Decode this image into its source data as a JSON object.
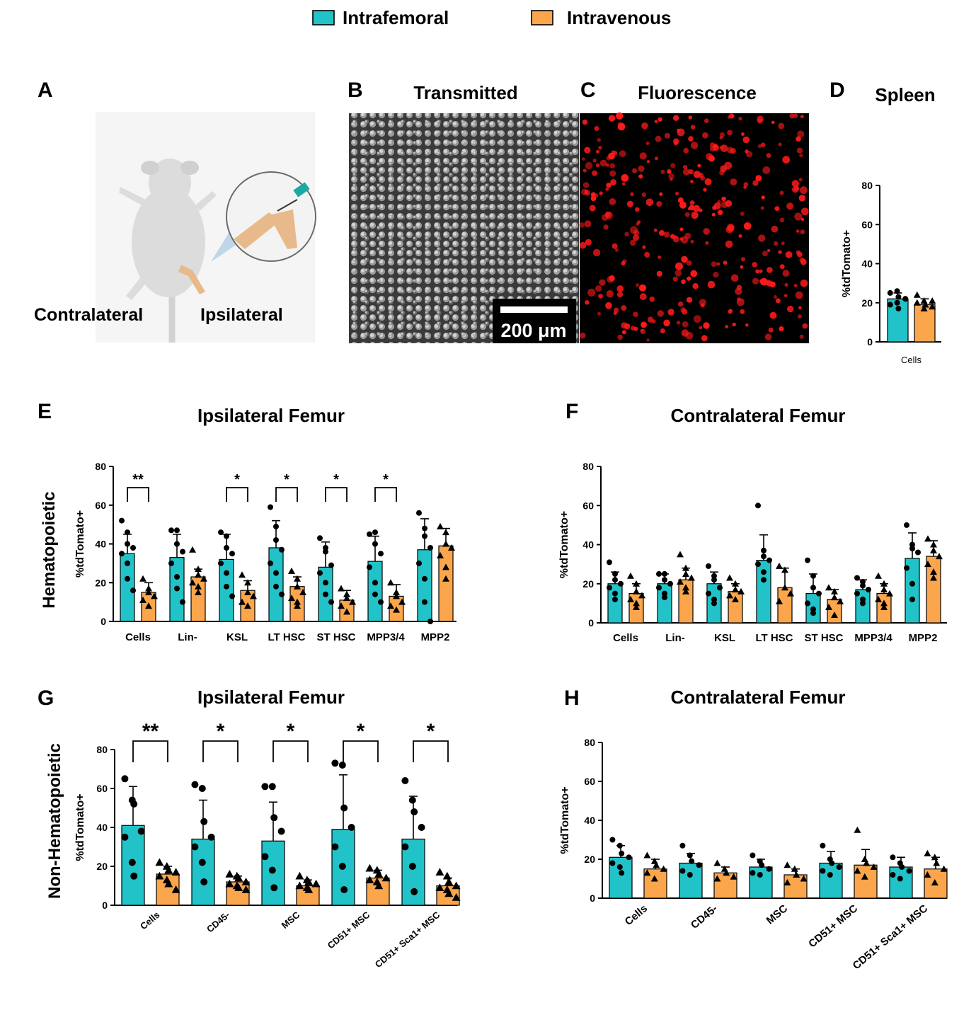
{
  "legend": {
    "entries": [
      {
        "label": "Intrafemoral",
        "color": "#22C3C8"
      },
      {
        "label": "Intravenous",
        "color": "#FBA64C"
      }
    ]
  },
  "colors": {
    "intrafemoral": "#22C3C8",
    "intravenous": "#FBA64C",
    "axis": "#000000",
    "fluorescence": "#ff1a1a"
  },
  "panels": {
    "A": {
      "letter": "A",
      "left_label": "Contralateral",
      "right_label": "Ipsilateral",
      "icons": [
        "mouse-illustration",
        "syringe-injection-illustration"
      ]
    },
    "B": {
      "letter": "B",
      "title": "Transmitted",
      "scale_bar": "200 μm"
    },
    "C": {
      "letter": "C",
      "title": "Fluorescence"
    },
    "D": {
      "letter": "D",
      "title": "Spleen"
    },
    "E": {
      "letter": "E",
      "title": "Ipsilateral Femur"
    },
    "F": {
      "letter": "F",
      "title": "Contralateral Femur"
    },
    "G": {
      "letter": "G",
      "title": "Ipsilateral Femur"
    },
    "H": {
      "letter": "H",
      "title": "Contralateral Femur"
    }
  },
  "row_labels": {
    "hematopoietic": "Hematopoietic",
    "non_hematopoietic": "Non-Hematopoietic"
  },
  "chart_data": [
    {
      "id": "D",
      "type": "bar",
      "title": "Spleen",
      "ylabel": "%tdTomato+",
      "ylim": [
        0,
        80
      ],
      "yticks": [
        0,
        20,
        40,
        60,
        80
      ],
      "categories": [
        "Cells"
      ],
      "series": [
        {
          "name": "Intrafemoral",
          "values": [
            22
          ],
          "err": [
            3
          ],
          "points": [
            [
              25,
              26,
              23,
              22,
              19,
              20,
              17,
              22
            ]
          ]
        },
        {
          "name": "Intravenous",
          "values": [
            19
          ],
          "err": [
            3
          ],
          "points": [
            [
              24,
              21,
              19,
              18,
              20,
              17,
              19,
              21
            ]
          ]
        }
      ]
    },
    {
      "id": "E",
      "type": "bar",
      "title": "Ipsilateral Femur",
      "ylabel": "%tdTomato+",
      "ylim": [
        0,
        80
      ],
      "yticks": [
        0,
        20,
        40,
        60,
        80
      ],
      "categories": [
        "Cells",
        "Lin-",
        "KSL",
        "LT HSC",
        "ST HSC",
        "MPP3/4",
        "MPP2"
      ],
      "series": [
        {
          "name": "Intrafemoral",
          "values": [
            35,
            33,
            32,
            38,
            28,
            31,
            37
          ],
          "err": [
            10,
            12,
            13,
            14,
            13,
            13,
            16
          ],
          "points": [
            [
              52,
              46,
              40,
              38,
              35,
              30,
              22,
              16
            ],
            [
              47,
              47,
              40,
              36,
              30,
              23,
              17,
              10
            ],
            [
              46,
              44,
              38,
              35,
              30,
              25,
              18,
              13
            ],
            [
              59,
              49,
              42,
              37,
              30,
              25,
              18,
              14
            ],
            [
              43,
              38,
              36,
              29,
              25,
              20,
              14,
              10
            ],
            [
              45,
              46,
              40,
              35,
              28,
              20,
              14,
              10
            ],
            [
              56,
              48,
              44,
              38,
              30,
              22,
              10,
              0
            ]
          ]
        },
        {
          "name": "Intravenous",
          "values": [
            15,
            23,
            16,
            18,
            11,
            13,
            39
          ],
          "err": [
            5,
            4,
            5,
            5,
            5,
            6,
            9
          ],
          "points": [
            [
              22,
              17,
              15,
              13,
              11,
              8
            ],
            [
              37,
              27,
              24,
              22,
              20,
              18,
              15
            ],
            [
              24,
              20,
              15,
              13,
              10,
              8
            ],
            [
              26,
              22,
              18,
              15,
              12,
              10,
              8
            ],
            [
              17,
              14,
              12,
              10,
              8,
              5
            ],
            [
              20,
              15,
              13,
              10,
              8,
              6
            ],
            [
              49,
              46,
              40,
              38,
              34,
              28,
              22
            ]
          ]
        }
      ],
      "significance": [
        {
          "category": "Cells",
          "label": "**"
        },
        {
          "category": "KSL",
          "label": "*"
        },
        {
          "category": "LT HSC",
          "label": "*"
        },
        {
          "category": "ST HSC",
          "label": "*"
        },
        {
          "category": "MPP3/4",
          "label": "*"
        }
      ]
    },
    {
      "id": "F",
      "type": "bar",
      "title": "Contralateral Femur",
      "ylabel": "%tdTomato+",
      "ylim": [
        0,
        80
      ],
      "yticks": [
        0,
        20,
        40,
        60,
        80
      ],
      "categories": [
        "Cells",
        "Lin-",
        "KSL",
        "LT HSC",
        "ST HSC",
        "MPP3/4",
        "MPP2"
      ],
      "series": [
        {
          "name": "Intrafemoral",
          "values": [
            20,
            20,
            20,
            32,
            15,
            17,
            33
          ],
          "err": [
            6,
            5,
            6,
            13,
            10,
            5,
            13
          ],
          "points": [
            [
              31,
              25,
              22,
              20,
              18,
              15,
              12
            ],
            [
              25,
              25,
              22,
              20,
              18,
              15,
              13
            ],
            [
              29,
              24,
              22,
              18,
              15,
              12,
              10
            ],
            [
              60,
              37,
              34,
              32,
              30,
              26,
              22
            ],
            [
              32,
              24,
              18,
              15,
              10,
              7,
              5
            ],
            [
              23,
              21,
              19,
              17,
              15,
              12,
              10
            ],
            [
              50,
              40,
              38,
              36,
              28,
              20,
              12
            ]
          ]
        },
        {
          "name": "Intravenous",
          "values": [
            15,
            22,
            16,
            18,
            12,
            15,
            34
          ],
          "err": [
            5,
            6,
            4,
            10,
            5,
            5,
            8
          ],
          "points": [
            [
              24,
              20,
              16,
              14,
              12,
              10,
              8
            ],
            [
              35,
              28,
              25,
              23,
              21,
              18,
              16
            ],
            [
              23,
              20,
              17,
              16,
              14,
              12
            ],
            [
              29,
              27,
              18,
              15,
              11
            ],
            [
              18,
              16,
              13,
              11,
              8,
              4
            ],
            [
              24,
              20,
              17,
              15,
              12,
              10,
              8
            ],
            [
              43,
              40,
              37,
              34,
              30,
              26,
              23
            ]
          ]
        }
      ]
    },
    {
      "id": "G",
      "type": "bar",
      "title": "Ipsilateral Femur",
      "ylabel": "%tdTomato+",
      "ylim": [
        0,
        80
      ],
      "yticks": [
        0,
        20,
        40,
        60,
        80
      ],
      "categories": [
        "Cells",
        "CD45-",
        "MSC",
        "CD51+ MSC",
        "CD51+ Sca1+ MSC"
      ],
      "series": [
        {
          "name": "Intrafemoral",
          "values": [
            41,
            34,
            33,
            39,
            34
          ],
          "err": [
            20,
            20,
            20,
            28,
            22
          ],
          "points": [
            [
              65,
              54,
              52,
              38,
              35,
              22,
              15
            ],
            [
              62,
              60,
              43,
              35,
              30,
              22,
              12
            ],
            [
              61,
              61,
              45,
              38,
              25,
              18,
              9
            ],
            [
              73,
              72,
              50,
              40,
              30,
              20,
              8
            ],
            [
              64,
              54,
              48,
              40,
              30,
              20,
              7
            ]
          ]
        },
        {
          "name": "Intravenous",
          "values": [
            16,
            12,
            10,
            14,
            10
          ],
          "err": [
            4,
            3,
            3,
            4,
            4
          ],
          "points": [
            [
              22,
              20,
              18,
              17,
              15,
              13,
              11,
              8
            ],
            [
              16,
              15,
              14,
              12,
              11,
              10,
              9,
              8
            ],
            [
              15,
              13,
              12,
              11,
              10,
              9,
              8
            ],
            [
              19,
              18,
              16,
              14,
              13,
              12,
              10
            ],
            [
              17,
              15,
              12,
              10,
              9,
              8,
              6,
              4
            ]
          ]
        }
      ],
      "significance": [
        {
          "category": "Cells",
          "label": "**"
        },
        {
          "category": "CD45-",
          "label": "*"
        },
        {
          "category": "MSC",
          "label": "*"
        },
        {
          "category": "CD51+ MSC",
          "label": "*"
        },
        {
          "category": "CD51+ Sca1+ MSC",
          "label": "*"
        }
      ]
    },
    {
      "id": "H",
      "type": "bar",
      "title": "Contralateral Femur",
      "ylabel": "%tdTomato+",
      "ylim": [
        0,
        80
      ],
      "yticks": [
        0,
        20,
        40,
        60,
        80
      ],
      "categories": [
        "Cells",
        "CD45-",
        "MSC",
        "CD51+ MSC",
        "CD51+ Sca1+ MSC"
      ],
      "series": [
        {
          "name": "Intrafemoral",
          "values": [
            21,
            18,
            16,
            18,
            16
          ],
          "err": [
            6,
            5,
            4,
            6,
            5
          ],
          "points": [
            [
              30,
              27,
              23,
              21,
              18,
              16,
              13
            ],
            [
              27,
              22,
              19,
              17,
              14,
              12
            ],
            [
              22,
              19,
              17,
              15,
              13,
              12
            ],
            [
              27,
              20,
              18,
              16,
              14,
              12
            ],
            [
              21,
              18,
              16,
              14,
              12,
              10
            ]
          ]
        },
        {
          "name": "Intravenous",
          "values": [
            15,
            13,
            12,
            17,
            15
          ],
          "err": [
            5,
            3,
            3,
            8,
            6
          ],
          "points": [
            [
              22,
              19,
              17,
              15,
              13,
              10
            ],
            [
              18,
              15,
              13,
              11,
              10
            ],
            [
              17,
              15,
              12,
              10,
              8
            ],
            [
              35,
              20,
              18,
              16,
              14,
              11
            ],
            [
              23,
              21,
              18,
              15,
              12,
              8
            ]
          ]
        }
      ]
    }
  ]
}
